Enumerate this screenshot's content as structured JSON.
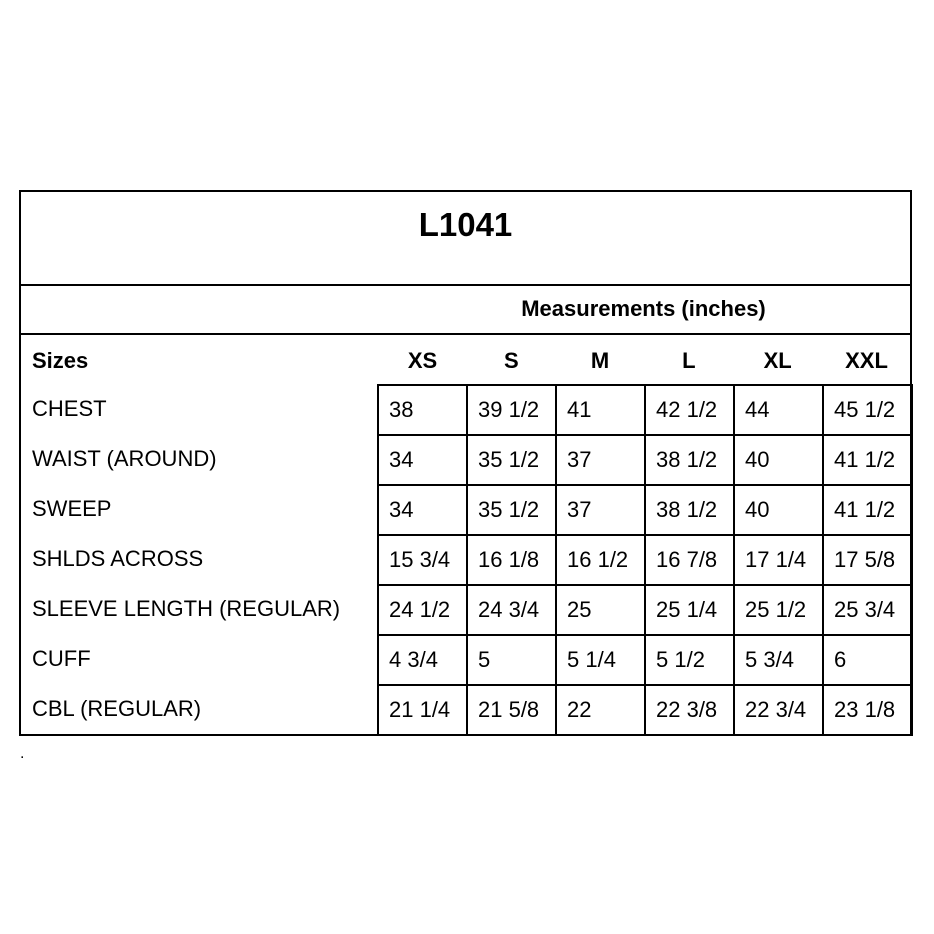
{
  "title": "L1041",
  "measurements_label": "Measurements (inches)",
  "sizes_label": "Sizes",
  "sizes": [
    "XS",
    "S",
    "M",
    "L",
    "XL",
    "XXL"
  ],
  "rows": [
    {
      "label": "CHEST",
      "values": [
        "38",
        "39 1/2",
        "41",
        "42 1/2",
        "44",
        "45 1/2"
      ]
    },
    {
      "label": "WAIST (AROUND)",
      "values": [
        "34",
        "35 1/2",
        "37",
        "38 1/2",
        "40",
        "41 1/2"
      ]
    },
    {
      "label": "SWEEP",
      "values": [
        "34",
        "35 1/2",
        "37",
        "38 1/2",
        "40",
        "41 1/2"
      ]
    },
    {
      "label": "SHLDS ACROSS",
      "values": [
        "15 3/4",
        "16 1/8",
        "16 1/2",
        "16 7/8",
        "17 1/4",
        "17 5/8"
      ]
    },
    {
      "label": "SLEEVE LENGTH (REGULAR)",
      "values": [
        "24 1/2",
        "24 3/4",
        "25",
        "25 1/4",
        "25 1/2",
        "25 3/4"
      ]
    },
    {
      "label": "CUFF",
      "values": [
        "4 3/4",
        "5",
        "5 1/4",
        "5 1/2",
        "5 3/4",
        "6"
      ]
    },
    {
      "label": "CBL (REGULAR)",
      "values": [
        "21 1/4",
        "21 5/8",
        "22",
        "22 3/8",
        "22 3/4",
        "23 1/8"
      ]
    }
  ],
  "footnote": "."
}
